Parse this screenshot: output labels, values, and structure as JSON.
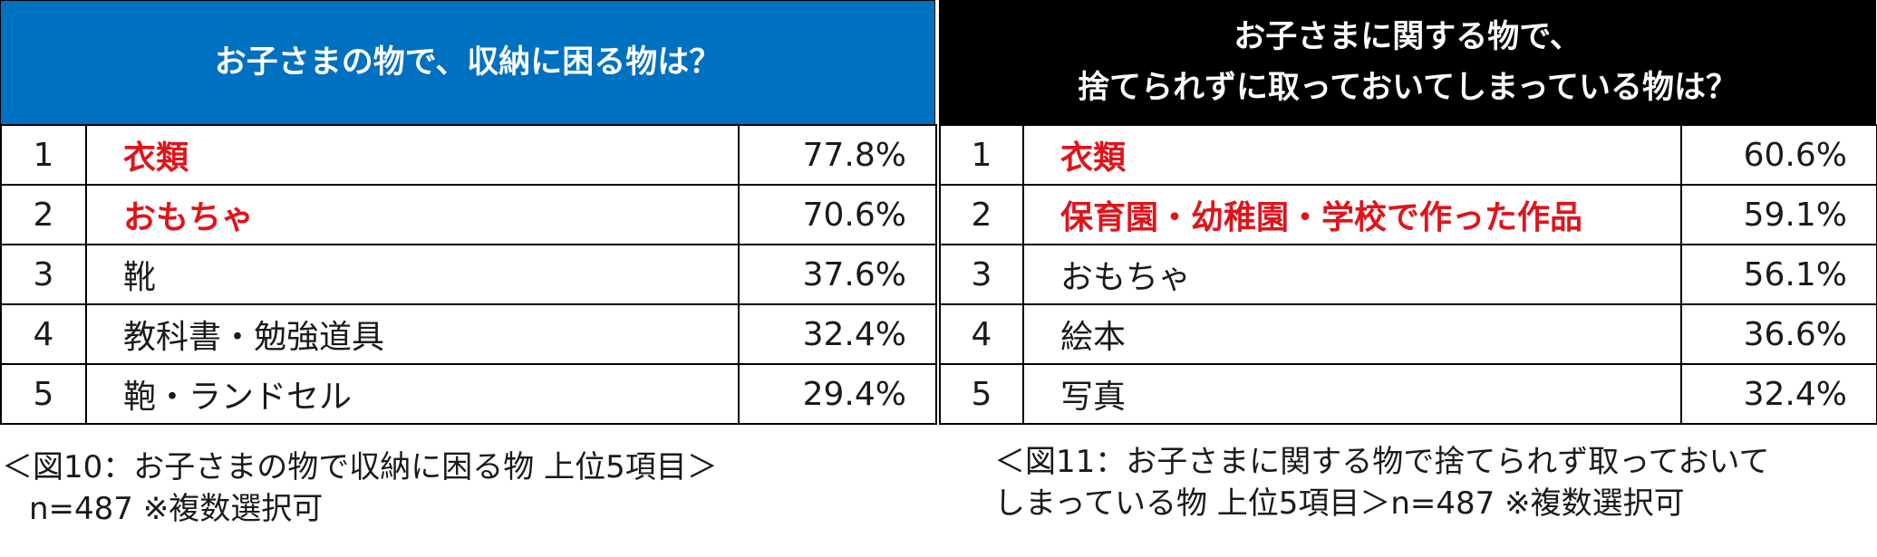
{
  "chart_data": [
    {
      "type": "table",
      "header_color": "#0070c0",
      "highlight_color": "#e0141b",
      "title_lines": [
        "お子さまの物で、収納に困る物は？"
      ],
      "rows": [
        {
          "rank": "1",
          "item": "衣類",
          "value": "77.8%",
          "highlight": true
        },
        {
          "rank": "2",
          "item": "おもちゃ",
          "value": "70.6%",
          "highlight": true
        },
        {
          "rank": "3",
          "item": "靴",
          "value": "37.6%",
          "highlight": false
        },
        {
          "rank": "4",
          "item": "教科書・勉強道具",
          "value": "32.4%",
          "highlight": false
        },
        {
          "rank": "5",
          "item": "鞄・ランドセル",
          "value": "29.4%",
          "highlight": false
        }
      ],
      "note_lines": [
        "＜図10：お子さまの物で収納に困る物 上位5項目＞",
        "n=487 ※複数選択可"
      ]
    },
    {
      "type": "table",
      "header_color": "#000000",
      "highlight_color": "#e0141b",
      "title_lines": [
        "お子さまに関する物で、",
        "捨てられずに取っておいてしまっている物は？"
      ],
      "rows": [
        {
          "rank": "1",
          "item": "衣類",
          "value": "60.6%",
          "highlight": true
        },
        {
          "rank": "2",
          "item": "保育園・幼稚園・学校で作った作品",
          "value": "59.1%",
          "highlight": true
        },
        {
          "rank": "3",
          "item": "おもちゃ",
          "value": "56.1%",
          "highlight": false
        },
        {
          "rank": "4",
          "item": "絵本",
          "value": "36.6%",
          "highlight": false
        },
        {
          "rank": "5",
          "item": "写真",
          "value": "32.4%",
          "highlight": false
        }
      ],
      "note_lines": [
        "＜図11：お子さまに関する物で捨てられず取っておいて",
        "しまっている物 上位5項目＞n=487 ※複数選択可"
      ]
    }
  ]
}
